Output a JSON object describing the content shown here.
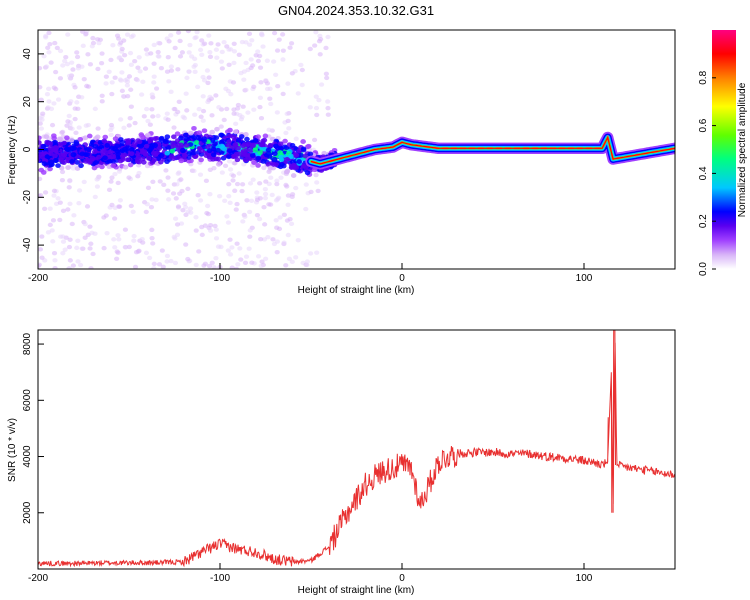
{
  "page_title": "GN04.2024.353.10.32.G31",
  "chart_data": [
    {
      "type": "heatmap",
      "title": "GN04.2024.353.10.32.G31",
      "xlabel": "Height of straight line (km)",
      "ylabel": "Frequency (Hz)",
      "xlim": [
        -200,
        150
      ],
      "ylim": [
        -50,
        50
      ],
      "xticks": [
        -200,
        -100,
        0,
        100
      ],
      "yticks": [
        -40,
        -20,
        0,
        20,
        40
      ],
      "grid": false,
      "colorbar": {
        "label": "Normalized spectral amplitude",
        "range": [
          0.0,
          1.0
        ],
        "ticks": [
          "0.0",
          "0.2",
          "0.4",
          "0.6",
          "0.8"
        ],
        "colors": [
          "#ffffff",
          "#d8b4f8",
          "#a040ff",
          "#5a00f0",
          "#0000ff",
          "#00c8ff",
          "#00ff80",
          "#60ff00",
          "#ffff00",
          "#ff8000",
          "#ff0000",
          "#ff0080"
        ]
      },
      "ridge": {
        "description_points_x": [
          -200,
          -150,
          -110,
          -80,
          -60,
          -45,
          -35,
          -25,
          -15,
          -5,
          0,
          5,
          20,
          60,
          110,
          113,
          116,
          150
        ],
        "description_points_y": [
          -2,
          -1,
          1.5,
          0,
          -3,
          -6,
          -4,
          -2,
          0,
          1,
          3,
          2,
          0.5,
          0.5,
          0.5,
          5,
          -4,
          0.5
        ]
      }
    },
    {
      "type": "line",
      "xlabel": "Height of straight line (km)",
      "ylabel": "SNR (10 * v/v)",
      "xlim": [
        -200,
        150
      ],
      "ylim": [
        0,
        8500
      ],
      "xticks": [
        -200,
        -100,
        0,
        100
      ],
      "yticks": [
        2000,
        4000,
        6000,
        8000
      ],
      "grid": false,
      "color": "#e83030",
      "series": [
        {
          "x": [
            -200,
            -180,
            -160,
            -140,
            -120,
            -110,
            -100,
            -90,
            -80,
            -70,
            -60,
            -50,
            -40,
            -35,
            -30,
            -25,
            -20,
            -15,
            -10,
            -5,
            0,
            5,
            10,
            15,
            20,
            25,
            30,
            40,
            50,
            60,
            70,
            80,
            90,
            100,
            105,
            110,
            113,
            115,
            116,
            117,
            118,
            120,
            130,
            140,
            150
          ],
          "y": [
            200,
            200,
            220,
            220,
            250,
            600,
            900,
            700,
            600,
            350,
            250,
            300,
            800,
            1400,
            2000,
            2500,
            3000,
            3300,
            3500,
            3600,
            3700,
            3600,
            2300,
            3000,
            3800,
            4000,
            4100,
            4150,
            4150,
            4100,
            4100,
            4000,
            3950,
            3850,
            3800,
            3700,
            3800,
            7000,
            2000,
            8500,
            3700,
            3650,
            3550,
            3450,
            3350
          ]
        }
      ]
    }
  ]
}
